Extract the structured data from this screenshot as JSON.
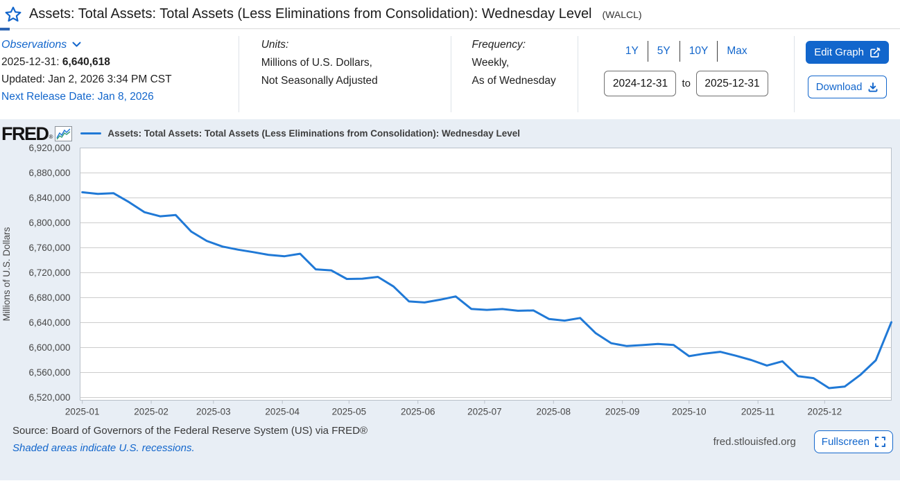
{
  "header": {
    "title": "Assets: Total Assets: Total Assets (Less Eliminations from Consolidation): Wednesday Level",
    "ticker": "(WALCL)"
  },
  "observations": {
    "label": "Observations",
    "date_label": "2025-12-31:",
    "value": "6,640,618",
    "updated": "Updated: Jan 2, 2026 3:34 PM CST",
    "next_release": "Next Release Date: Jan 8, 2026"
  },
  "units": {
    "label": "Units:",
    "line1": "Millions of U.S. Dollars,",
    "line2": "Not Seasonally Adjusted"
  },
  "frequency": {
    "label": "Frequency:",
    "line1": "Weekly,",
    "line2": "As of Wednesday"
  },
  "range": {
    "presets": [
      "1Y",
      "5Y",
      "10Y",
      "Max"
    ],
    "start": "2024-12-31",
    "to_label": "to",
    "end": "2025-12-31"
  },
  "actions": {
    "edit_graph": "Edit Graph",
    "download": "Download",
    "fullscreen": "Fullscreen"
  },
  "brand": {
    "logo": "FRED",
    "logo_mark": "®"
  },
  "footer": {
    "source": "Source: Board of Governors of the Federal Reserve System (US) via FRED®",
    "recessions": "Shaded areas indicate U.S. recessions.",
    "site": "fred.stlouisfed.org"
  },
  "colors": {
    "accent": "#1266cc",
    "line": "#2079d6",
    "chart_bg": "#e8eef5",
    "grid": "#cccccc",
    "plot_border": "#b9c0c9"
  },
  "chart_data": {
    "type": "line",
    "title": "Assets: Total Assets: Total Assets (Less Eliminations from Consolidation): Wednesday Level",
    "series_name": "Assets: Total Assets: Total Assets (Less Eliminations from Consolidation): Wednesday Level",
    "xlabel": "",
    "ylabel": "Millions of U.S. Dollars",
    "units": "Millions of U.S. Dollars, Not Seasonally Adjusted",
    "frequency": "Weekly, As of Wednesday",
    "grid": true,
    "legend_position": "top-left",
    "ylim": [
      6520000,
      6920000
    ],
    "y_ticks": [
      6520000,
      6560000,
      6600000,
      6640000,
      6680000,
      6720000,
      6760000,
      6800000,
      6840000,
      6880000,
      6920000
    ],
    "x_range": [
      "2024-12-31",
      "2025-12-31"
    ],
    "x_tick_labels": [
      "2025-01",
      "2025-02",
      "2025-03",
      "2025-04",
      "2025-05",
      "2025-06",
      "2025-07",
      "2025-08",
      "2025-09",
      "2025-10",
      "2025-11",
      "2025-12"
    ],
    "dates": [
      "2025-01-01",
      "2025-01-08",
      "2025-01-15",
      "2025-01-22",
      "2025-01-29",
      "2025-02-05",
      "2025-02-12",
      "2025-02-19",
      "2025-02-26",
      "2025-03-05",
      "2025-03-12",
      "2025-03-19",
      "2025-03-26",
      "2025-04-02",
      "2025-04-09",
      "2025-04-16",
      "2025-04-23",
      "2025-04-30",
      "2025-05-07",
      "2025-05-14",
      "2025-05-21",
      "2025-05-28",
      "2025-06-04",
      "2025-06-11",
      "2025-06-18",
      "2025-06-25",
      "2025-07-02",
      "2025-07-09",
      "2025-07-16",
      "2025-07-23",
      "2025-07-30",
      "2025-08-06",
      "2025-08-13",
      "2025-08-20",
      "2025-08-27",
      "2025-09-03",
      "2025-09-10",
      "2025-09-17",
      "2025-09-24",
      "2025-10-01",
      "2025-10-08",
      "2025-10-15",
      "2025-10-22",
      "2025-10-29",
      "2025-11-05",
      "2025-11-12",
      "2025-11-19",
      "2025-11-26",
      "2025-12-03",
      "2025-12-10",
      "2025-12-17",
      "2025-12-24",
      "2025-12-31"
    ],
    "values": [
      6849000,
      6846300,
      6847600,
      6833200,
      6817000,
      6810400,
      6812600,
      6786000,
      6771000,
      6762000,
      6757000,
      6753000,
      6748500,
      6746500,
      6750500,
      6725500,
      6723800,
      6710000,
      6710500,
      6713300,
      6698000,
      6674000,
      6672300,
      6676800,
      6682000,
      6662000,
      6660500,
      6661800,
      6659000,
      6659500,
      6645800,
      6643200,
      6647500,
      6623000,
      6607000,
      6602500,
      6604000,
      6605800,
      6604200,
      6586200,
      6590300,
      6593200,
      6587000,
      6580000,
      6571200,
      6578000,
      6554200,
      6551000,
      6535000,
      6537400,
      6556000,
      6579500,
      6640618
    ],
    "latest_value": 6640618
  }
}
